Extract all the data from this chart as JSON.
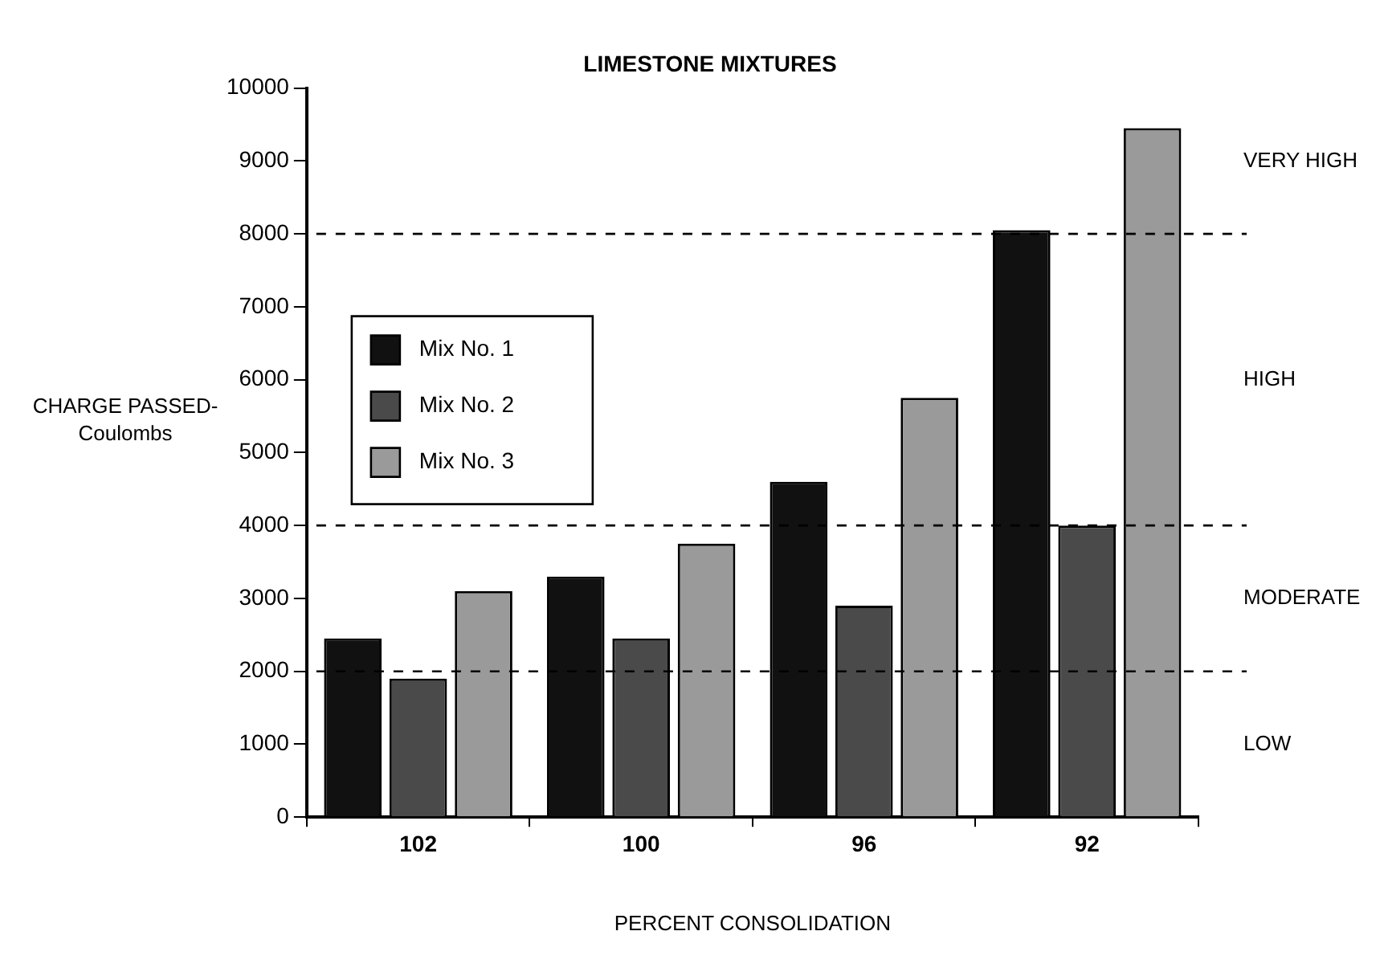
{
  "chart_data": {
    "type": "bar",
    "title": "LIMESTONE MIXTURES",
    "xlabel": "PERCENT CONSOLIDATION",
    "ylabel": "CHARGE PASSED-\nCoulombs",
    "categories": [
      "102",
      "100",
      "96",
      "92"
    ],
    "series": [
      {
        "name": "Mix No. 1",
        "color": "#111111",
        "values": [
          2450,
          3300,
          4600,
          8050
        ]
      },
      {
        "name": "Mix No. 2",
        "color": "#4a4a4a",
        "values": [
          1900,
          2450,
          2900,
          4000
        ]
      },
      {
        "name": "Mix No. 3",
        "color": "#9a9a9a",
        "values": [
          3100,
          3750,
          5750,
          9450
        ]
      }
    ],
    "ylim": [
      0,
      10000
    ],
    "yticks": [
      0,
      1000,
      2000,
      3000,
      4000,
      5000,
      6000,
      7000,
      8000,
      9000,
      10000
    ],
    "ref_lines": [
      {
        "axis": "y",
        "value": 2000,
        "line_style": "dashed"
      },
      {
        "axis": "y",
        "value": 4000,
        "line_style": "dashed"
      },
      {
        "axis": "y",
        "value": 8000,
        "line_style": "dashed"
      }
    ],
    "annotations": [
      "LOW",
      "MODERATE",
      "HIGH",
      "VERY HIGH"
    ],
    "grid": false,
    "legend": "top left"
  }
}
